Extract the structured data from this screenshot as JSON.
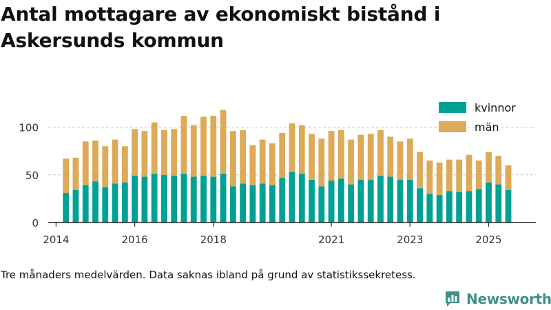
{
  "title": "Antal mottagare av ekonomiskt bistånd i Askersunds kommun",
  "caption": "Tre månaders medelvärden. Data saknas ibland på grund av statistikssekretess.",
  "brand": {
    "name": "Newsworthy",
    "color": "#3f8f87"
  },
  "chart_data": {
    "type": "bar",
    "stacked": true,
    "title": "Antal mottagare av ekonomiskt bistånd i Askersunds kommun",
    "xlabel": "",
    "ylabel": "",
    "ylim": [
      0,
      125
    ],
    "yticks": [
      0,
      50,
      100
    ],
    "grid": true,
    "legend_position": "top-right",
    "x_start": 2014.25,
    "x_step": 0.25,
    "xlim": [
      2013.8,
      2026.2
    ],
    "xticks": [
      2014,
      2016,
      2018,
      2021,
      2023,
      2025
    ],
    "series": [
      {
        "name": "kvinnor",
        "color": "#00a195",
        "values": [
          31,
          34,
          39,
          43,
          37,
          41,
          42,
          49,
          48,
          51,
          50,
          49,
          51,
          48,
          49,
          48,
          51,
          38,
          41,
          39,
          41,
          39,
          47,
          53,
          51,
          45,
          38,
          44,
          46,
          40,
          45,
          45,
          49,
          48,
          45,
          45,
          36,
          30,
          29,
          33,
          32,
          33,
          35,
          42,
          40,
          34
        ]
      },
      {
        "name": "män",
        "color": "#dcaa58",
        "values": [
          36,
          34,
          46,
          43,
          43,
          46,
          38,
          49,
          48,
          54,
          47,
          49,
          61,
          54,
          62,
          64,
          67,
          58,
          56,
          42,
          46,
          44,
          47,
          51,
          51,
          48,
          50,
          52,
          51,
          47,
          47,
          48,
          48,
          42,
          40,
          43,
          38,
          35,
          34,
          33,
          34,
          38,
          30,
          32,
          30,
          26
        ]
      }
    ]
  }
}
